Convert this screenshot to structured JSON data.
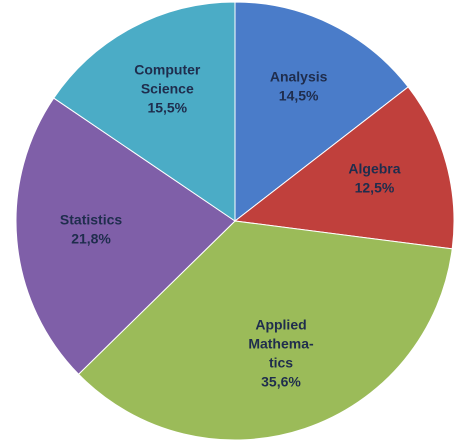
{
  "chart_data": {
    "type": "pie",
    "categories": [
      "Analysis",
      "Algebra",
      "Applied\nMathema-\ntics",
      "Statistics",
      "Computer\nScience"
    ],
    "values": [
      14.5,
      12.5,
      35.6,
      21.8,
      15.5
    ],
    "value_labels": [
      "14,5%",
      "12,5%",
      "35,6%",
      "21,8%",
      "15,5%"
    ],
    "colors": [
      "#4a7cc9",
      "#c0403c",
      "#9bbb59",
      "#7f5fa8",
      "#4bacc6"
    ]
  }
}
